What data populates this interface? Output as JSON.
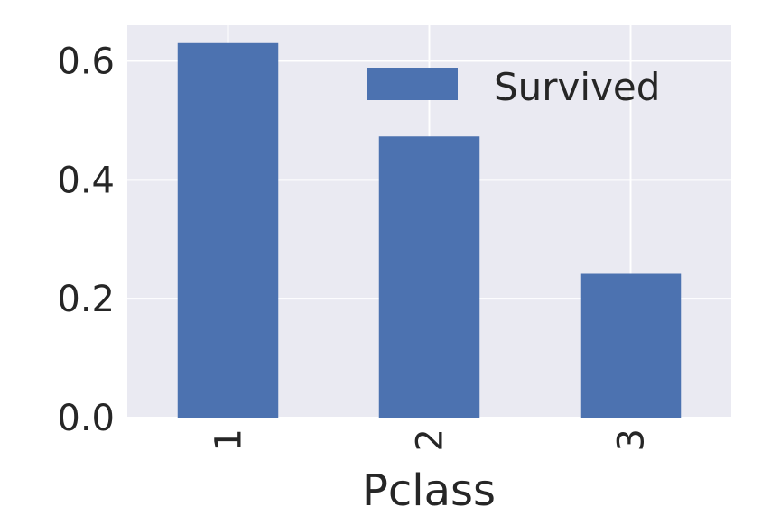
{
  "chart_data": {
    "type": "bar",
    "categories": [
      "1",
      "2",
      "3"
    ],
    "series": [
      {
        "name": "Survived",
        "values": [
          0.63,
          0.473,
          0.242
        ],
        "color": "#4c72b0"
      }
    ],
    "xlabel": "Pclass",
    "ylabel": "",
    "ylim": [
      0,
      0.66
    ],
    "yticks": [
      "0.0",
      "0.2",
      "0.4",
      "0.6"
    ],
    "grid": true,
    "legend_position": "top-right",
    "background_color": "#eaeaf2"
  }
}
